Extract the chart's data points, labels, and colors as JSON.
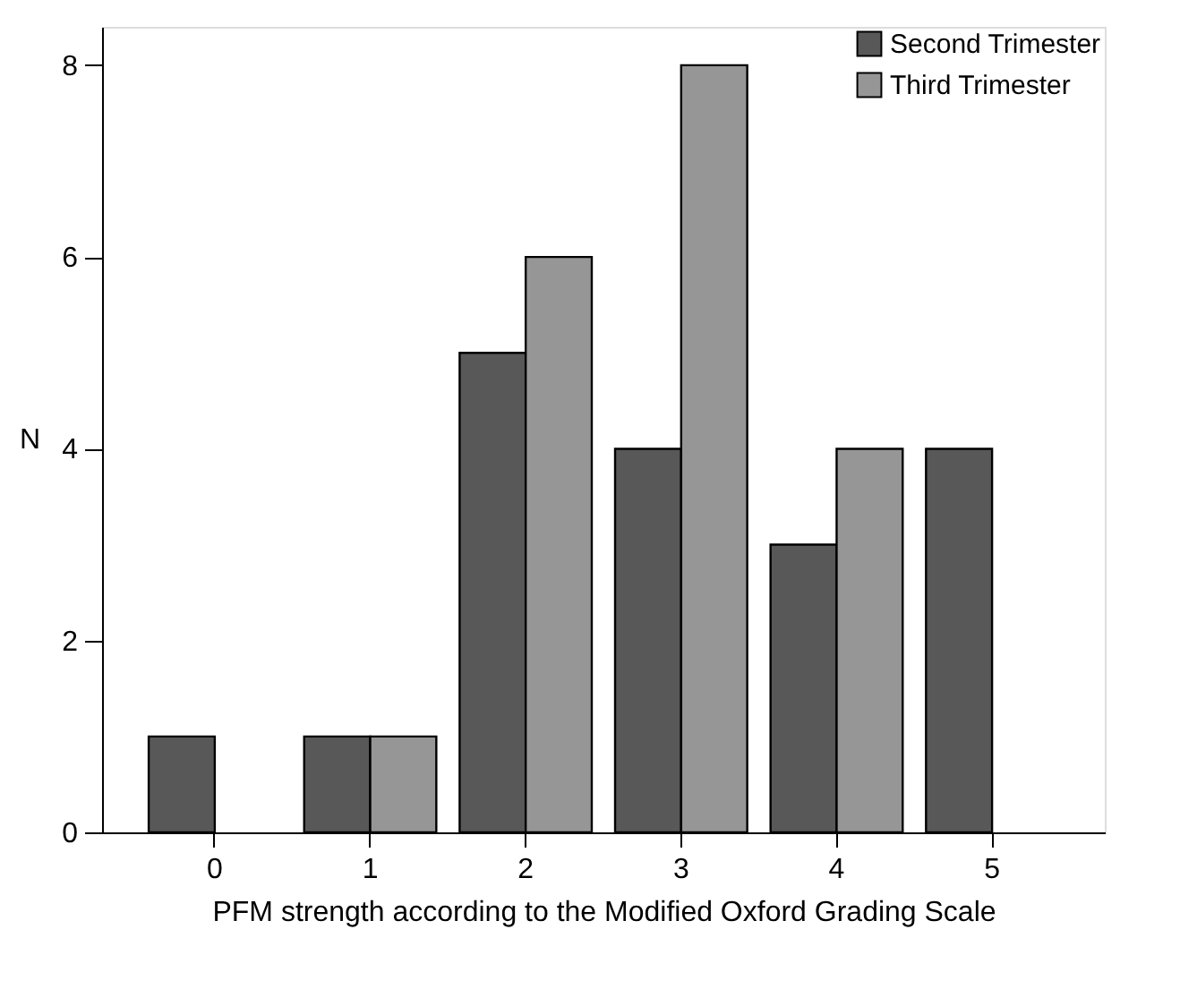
{
  "chart_data": {
    "type": "bar",
    "xlabel": "PFM strength according to the Modified Oxford Grading Scale",
    "ylabel": "N",
    "categories": [
      "0",
      "1",
      "2",
      "3",
      "4",
      "5"
    ],
    "series": [
      {
        "name": "Second Trimester",
        "color": "#585858",
        "values": [
          1,
          1,
          5,
          4,
          3,
          4
        ]
      },
      {
        "name": "Third Trimester",
        "color": "#969696",
        "values": [
          null,
          1,
          6,
          8,
          4,
          null
        ]
      }
    ],
    "ylim": [
      0,
      8.4
    ],
    "yticks": [
      0,
      2,
      4,
      6,
      8
    ],
    "grid": false,
    "legend": "top right"
  }
}
